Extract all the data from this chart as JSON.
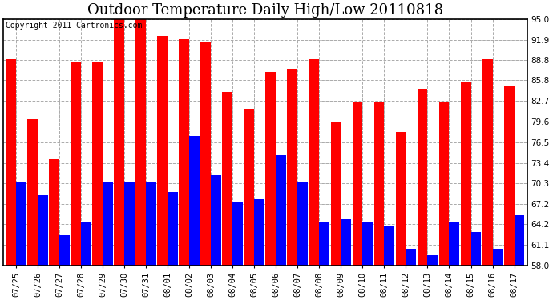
{
  "title": "Outdoor Temperature Daily High/Low 20110818",
  "copyright": "Copyright 2011 Cartronics.com",
  "categories": [
    "07/25",
    "07/26",
    "07/27",
    "07/28",
    "07/29",
    "07/30",
    "07/31",
    "08/01",
    "08/02",
    "08/03",
    "08/04",
    "08/05",
    "08/06",
    "08/07",
    "08/08",
    "08/09",
    "08/10",
    "08/11",
    "08/12",
    "08/13",
    "08/14",
    "08/15",
    "08/16",
    "08/17"
  ],
  "highs": [
    89.0,
    80.0,
    74.0,
    88.5,
    88.5,
    95.0,
    96.0,
    92.5,
    92.0,
    91.5,
    84.0,
    81.5,
    87.0,
    87.5,
    89.0,
    79.5,
    82.5,
    82.5,
    78.0,
    84.5,
    82.5,
    85.5,
    89.0,
    85.0
  ],
  "lows": [
    70.5,
    68.5,
    62.5,
    64.5,
    70.5,
    70.5,
    70.5,
    69.0,
    77.5,
    71.5,
    67.5,
    68.0,
    74.5,
    70.5,
    64.5,
    65.0,
    64.5,
    64.0,
    60.5,
    59.5,
    64.5,
    63.0,
    60.5,
    65.5
  ],
  "high_color": "#FF0000",
  "low_color": "#0000FF",
  "bg_color": "#FFFFFF",
  "plot_bg_color": "#FFFFFF",
  "grid_color": "#AAAAAA",
  "ymin": 58.0,
  "ymax": 95.0,
  "yticks": [
    58.0,
    61.1,
    64.2,
    67.2,
    70.3,
    73.4,
    76.5,
    79.6,
    82.7,
    85.8,
    88.8,
    91.9,
    95.0
  ],
  "title_fontsize": 13,
  "copyright_fontsize": 7,
  "tick_fontsize": 7.5,
  "bar_bottom": 58.0
}
